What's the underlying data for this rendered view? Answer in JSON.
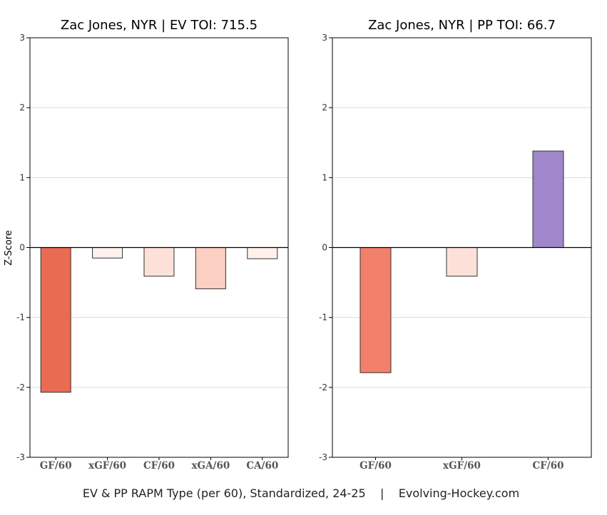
{
  "caption": "EV & PP RAPM Type (per 60), Standardized, 24-25    |    Evolving-Hockey.com",
  "ylabel": "Z-Score",
  "chart_data": [
    {
      "type": "bar",
      "title": "Zac Jones, NYR  |  EV TOI: 715.5",
      "ylabel": "Z-Score",
      "ylim": [
        -3,
        3
      ],
      "yticks": [
        -3,
        -2,
        -1,
        0,
        1,
        2,
        3
      ],
      "grid": true,
      "categories": [
        "GF/60",
        "xGF/60",
        "CF/60",
        "xGA/60",
        "CA/60"
      ],
      "values": [
        -2.07,
        -0.15,
        -0.41,
        -0.59,
        -0.16
      ],
      "colors": [
        "#e96b51",
        "#fff1ed",
        "#fde1d9",
        "#fccfc3",
        "#fff0ec"
      ]
    },
    {
      "type": "bar",
      "title": "Zac Jones, NYR  |  PP TOI: 66.7",
      "ylim": [
        -3,
        3
      ],
      "yticks": [
        -3,
        -2,
        -1,
        0,
        1,
        2,
        3
      ],
      "grid": true,
      "categories": [
        "GF/60",
        "xGF/60",
        "CF/60"
      ],
      "values": [
        -1.79,
        -0.41,
        1.38
      ],
      "colors": [
        "#f1816b",
        "#fde1d9",
        "#a087cb"
      ]
    }
  ]
}
